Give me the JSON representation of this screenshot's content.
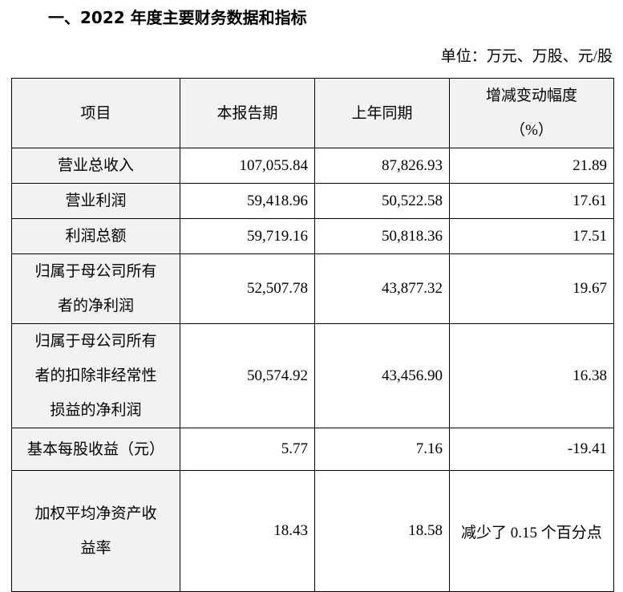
{
  "header": {
    "title": "一、2022 年度主要财务数据和指标",
    "unit": "单位：万元、万股、元/股"
  },
  "table": {
    "columns": [
      [
        "项目"
      ],
      [
        "本报告期"
      ],
      [
        "上年同期"
      ],
      [
        "增减变动幅度",
        "（%）"
      ]
    ],
    "rows": [
      [
        [
          "营业总收入"
        ],
        "107,055.84",
        "87,826.93",
        "21.89"
      ],
      [
        [
          "营业利润"
        ],
        "59,418.96",
        "50,522.58",
        "17.61"
      ],
      [
        [
          "利润总额"
        ],
        "59,719.16",
        "50,818.36",
        "17.51"
      ],
      [
        [
          "归属于母公司所有",
          "者的净利润"
        ],
        "52,507.78",
        "43,877.32",
        "19.67"
      ],
      [
        [
          "归属于母公司所有",
          "者的扣除非经常性",
          "损益的净利润"
        ],
        "50,574.92",
        "43,456.90",
        "16.38"
      ],
      [
        [
          "基本每股收益（元）"
        ],
        "5.77",
        "7.16",
        "-19.41"
      ],
      [
        [
          "加权平均净资产收",
          "益率"
        ],
        "18.43",
        "18.58",
        "减少了 0.15 个百分点"
      ]
    ]
  }
}
